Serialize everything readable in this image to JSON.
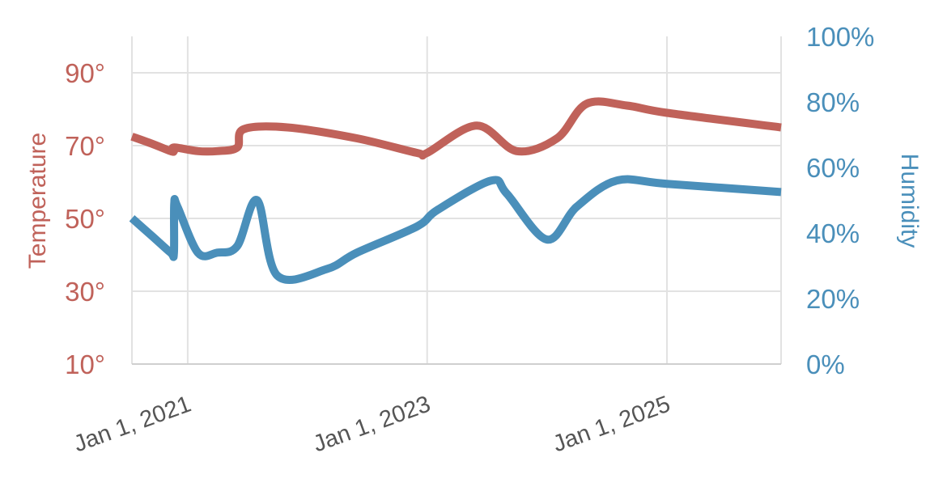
{
  "chart_data": {
    "type": "line",
    "title": "",
    "xlabel": "",
    "x_axis": {
      "type": "date",
      "range": [
        "2020-07-15",
        "2025-12-15"
      ],
      "ticks": [
        "2021-01-01",
        "2023-01-01",
        "2025-01-01"
      ],
      "tick_labels": [
        "Jan 1, 2021",
        "Jan 1, 2023",
        "Jan 1, 2025"
      ]
    },
    "y_left": {
      "label": "Temperature",
      "range": [
        10,
        100
      ],
      "ticks": [
        10,
        30,
        50,
        70,
        90
      ],
      "tick_labels": [
        "10°",
        "30°",
        "50°",
        "70°",
        "90°"
      ],
      "color": "#c0625a"
    },
    "y_right": {
      "label": "Humidity",
      "range": [
        0,
        100
      ],
      "ticks": [
        0,
        20,
        40,
        60,
        80,
        100
      ],
      "tick_labels": [
        "0%",
        "20%",
        "40%",
        "60%",
        "80%",
        "100%"
      ],
      "color": "#4a8fba"
    },
    "grid": true,
    "series": [
      {
        "name": "Temperature",
        "axis": "left",
        "color": "#c0625a",
        "x": [
          "2020-07-15",
          "2020-09-15",
          "2020-11-10",
          "2020-11-20",
          "2020-11-21",
          "2021-02-01",
          "2021-04-01",
          "2021-06-01",
          "2021-06-20",
          "2021-11-01",
          "2022-06-01",
          "2022-12-01",
          "2023-01-01",
          "2023-06-01",
          "2023-10-01",
          "2024-02-01",
          "2024-05-01",
          "2024-09-01",
          "2025-01-01",
          "2025-12-15"
        ],
        "y": [
          72.5,
          70.5,
          68.5,
          68.5,
          69.5,
          68.5,
          68.5,
          69.5,
          74.5,
          75,
          72,
          68,
          68,
          75.5,
          68.5,
          72,
          81.5,
          81,
          79,
          75
        ]
      },
      {
        "name": "Humidity",
        "axis": "right",
        "color": "#4a8fba",
        "x": [
          "2020-07-15",
          "2020-09-15",
          "2020-11-10",
          "2020-11-20",
          "2020-11-21",
          "2020-12-01",
          "2021-02-01",
          "2021-04-01",
          "2021-06-01",
          "2021-08-01",
          "2021-10-01",
          "2022-03-01",
          "2022-06-01",
          "2022-12-01",
          "2023-02-01",
          "2023-07-15",
          "2023-09-01",
          "2024-01-01",
          "2024-04-01",
          "2024-08-01",
          "2025-01-01",
          "2025-12-15"
        ],
        "y": [
          44.5,
          39,
          34,
          34,
          49,
          48,
          34,
          34,
          36,
          50,
          27,
          29,
          34,
          42,
          47,
          56,
          52,
          38,
          48,
          56,
          55,
          52.5
        ]
      }
    ]
  }
}
